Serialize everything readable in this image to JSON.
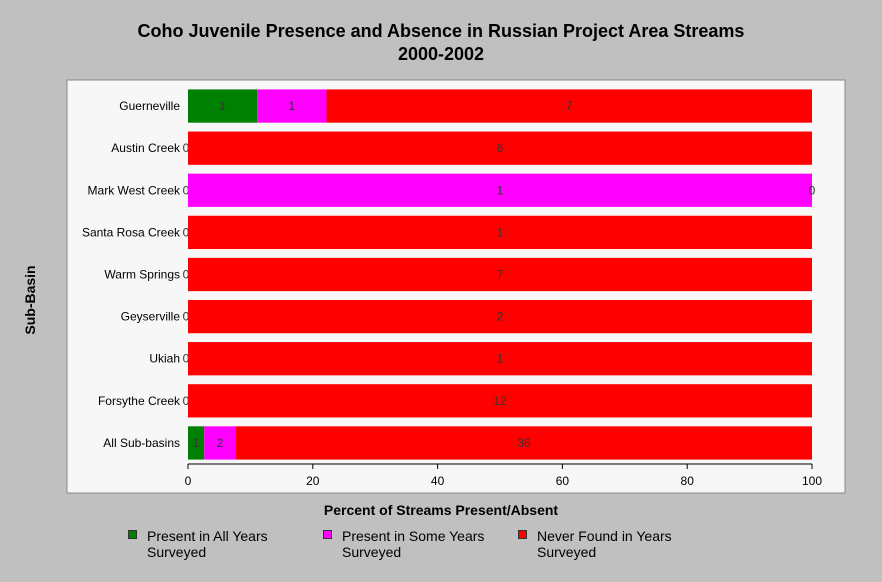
{
  "chart_data": {
    "type": "bar",
    "orientation": "horizontal",
    "stacked": true,
    "title": "Coho Juvenile Presence and Absence in Russian Project Area Streams",
    "subtitle": "2000-2002",
    "xlabel": "Percent of Streams Present/Absent",
    "ylabel": "Sub-Basin",
    "xlim": [
      0,
      100
    ],
    "xticks": [
      "0",
      "20",
      "40",
      "60",
      "80",
      "100"
    ],
    "categories": [
      "Guerneville",
      "Austin Creek",
      "Mark West Creek",
      "Santa Rosa Creek",
      "Warm Springs",
      "Geyserville",
      "Ukiah",
      "Forsythe Creek",
      "All Sub-basins"
    ],
    "series": [
      {
        "name": "Present in All Years Surveyed",
        "color": "#008000",
        "counts": [
          1,
          0,
          0,
          0,
          0,
          0,
          0,
          0,
          1
        ],
        "values": [
          11.1,
          0,
          0,
          0,
          0,
          0,
          0,
          0,
          2.6
        ]
      },
      {
        "name": "Present in Some Years Surveyed",
        "color": "#ff00ff",
        "counts": [
          1,
          null,
          1,
          null,
          null,
          null,
          null,
          null,
          2
        ],
        "values": [
          11.1,
          0,
          100,
          0,
          0,
          0,
          0,
          0,
          5.1
        ]
      },
      {
        "name": "Never Found in Years Surveyed",
        "color": "#ff0000",
        "counts": [
          7,
          6,
          0,
          1,
          7,
          2,
          1,
          12,
          36
        ],
        "values": [
          77.8,
          100,
          0,
          100,
          100,
          100,
          100,
          100,
          92.3
        ]
      }
    ],
    "grid": false,
    "legend_position": "bottom"
  }
}
